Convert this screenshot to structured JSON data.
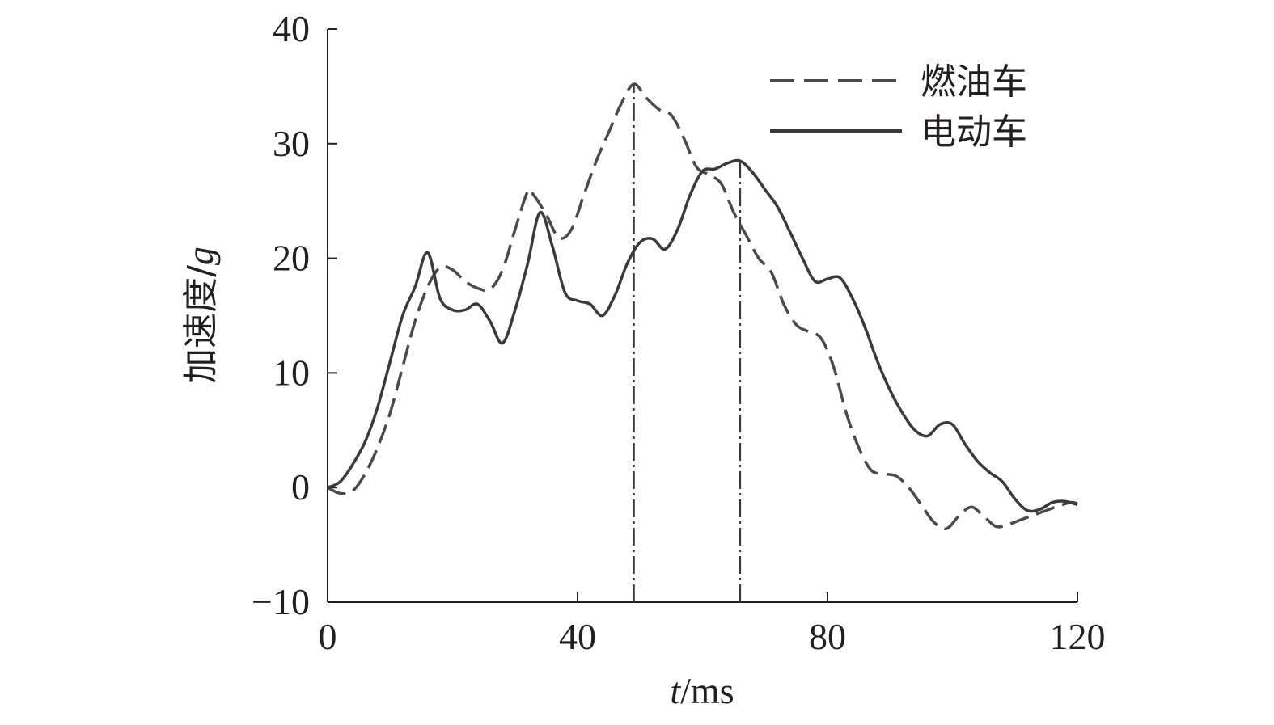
{
  "chart_data": {
    "type": "line",
    "title": "",
    "xlabel": "t/ms",
    "ylabel": "加速度/g",
    "xlim": [
      0,
      120
    ],
    "ylim": [
      -10,
      40
    ],
    "xticks": [
      0,
      40,
      80,
      120
    ],
    "yticks": [
      -10,
      0,
      10,
      20,
      30,
      40
    ],
    "xtick_labels": [
      "0",
      "40",
      "80",
      "120"
    ],
    "ytick_labels": [
      "−10",
      "0",
      "10",
      "20",
      "30",
      "40"
    ],
    "grid": false,
    "legend_position": "top-right",
    "series": [
      {
        "name": "燃油车",
        "style": "dashed",
        "color": "#4a4a4a",
        "x": [
          0,
          2,
          4,
          6,
          8,
          10,
          12,
          14,
          16,
          18,
          20,
          22,
          24,
          26,
          28,
          30,
          32,
          33,
          35,
          37,
          39,
          41,
          43,
          45,
          47,
          49,
          51,
          53,
          55,
          57,
          59,
          61,
          63,
          65,
          67,
          69,
          71,
          73,
          75,
          77,
          79,
          81,
          83,
          85,
          87,
          89,
          91,
          93,
          95,
          97,
          99,
          101,
          103,
          105,
          107,
          109,
          111,
          113,
          115,
          117,
          119,
          120
        ],
        "y": [
          0,
          -0.5,
          -0.3,
          1.2,
          3.5,
          6.5,
          10.5,
          14.5,
          17.5,
          19.2,
          19,
          18,
          17.4,
          17.3,
          19,
          22.5,
          25.8,
          25.5,
          23.8,
          21.8,
          22.5,
          25.5,
          28.5,
          31,
          33.5,
          35.2,
          34,
          33,
          32.5,
          30.5,
          28,
          27.3,
          26.5,
          24,
          22,
          20,
          18.8,
          16,
          14.2,
          13.6,
          13,
          10.5,
          6.5,
          3.5,
          1.5,
          1.2,
          1,
          0,
          -1.5,
          -3,
          -3.6,
          -2.5,
          -1.7,
          -2.5,
          -3.4,
          -3.2,
          -2.8,
          -2.4,
          -2,
          -1.6,
          -1.3,
          -1.4
        ]
      },
      {
        "name": "电动车",
        "style": "solid",
        "color": "#3a3a3a",
        "x": [
          0,
          2,
          4,
          6,
          8,
          10,
          12,
          14,
          16,
          18,
          20,
          22,
          24,
          26,
          28,
          30,
          32,
          34,
          36,
          38,
          40,
          42,
          44,
          46,
          48,
          50,
          52,
          54,
          56,
          58,
          60,
          62,
          64,
          66,
          68,
          70,
          72,
          74,
          76,
          78,
          80,
          82,
          84,
          86,
          88,
          90,
          92,
          94,
          96,
          98,
          100,
          102,
          104,
          106,
          108,
          110,
          112,
          114,
          116,
          118,
          120
        ],
        "y": [
          0,
          0.5,
          2,
          4,
          7,
          11,
          15,
          17.5,
          20.5,
          16.5,
          15.5,
          15.5,
          16,
          14.5,
          12.6,
          15.5,
          19.5,
          24,
          21,
          17,
          16.3,
          16,
          15,
          16.8,
          19.6,
          21.4,
          21.7,
          20.8,
          22.5,
          25.5,
          27.6,
          27.8,
          28.3,
          28.5,
          27.5,
          26,
          24.5,
          22.3,
          20,
          18,
          18.2,
          18.3,
          16.5,
          14,
          11,
          8.5,
          6.5,
          5,
          4.5,
          5.5,
          5.5,
          3.8,
          2.3,
          1.3,
          0.5,
          -1,
          -2,
          -1.9,
          -1.3,
          -1.2,
          -1.5
        ]
      }
    ],
    "annotations": [
      {
        "type": "vertical-dashdot",
        "x": 49,
        "from_y": -10,
        "to_y": 35.2,
        "series": "燃油车"
      },
      {
        "type": "vertical-dashdot",
        "x": 66,
        "from_y": -10,
        "to_y": 28.5,
        "series": "电动车"
      }
    ]
  }
}
